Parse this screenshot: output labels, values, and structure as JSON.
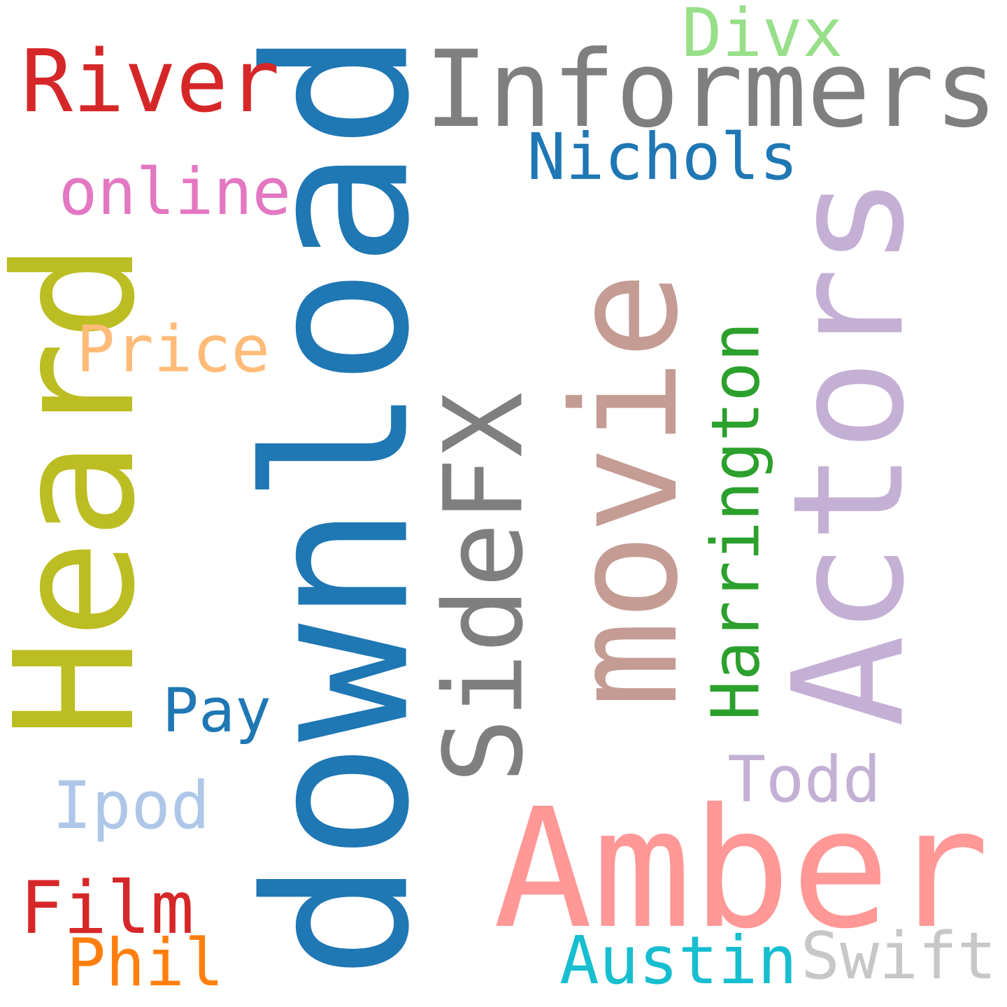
{
  "words": [
    {
      "text": "download",
      "color": "#1f77b4",
      "rotated": true
    },
    {
      "text": "movie",
      "color": "#c49c94",
      "rotated": true
    },
    {
      "text": "Actors",
      "color": "#c5b0d5",
      "rotated": true
    },
    {
      "text": "Heard",
      "color": "#bcbd22",
      "rotated": true
    },
    {
      "text": "Amber",
      "color": "#ff9896",
      "rotated": false
    },
    {
      "text": "Informers",
      "color": "#7f7f7f",
      "rotated": false
    },
    {
      "text": "SideFX",
      "color": "#7f7f7f",
      "rotated": true
    },
    {
      "text": "River",
      "color": "#d62728",
      "rotated": false
    },
    {
      "text": "Harrington",
      "color": "#2ca02c",
      "rotated": true
    },
    {
      "text": "Nichols",
      "color": "#1f77b4",
      "rotated": false
    },
    {
      "text": "Divx",
      "color": "#98df8a",
      "rotated": false
    },
    {
      "text": "online",
      "color": "#e377c2",
      "rotated": false
    },
    {
      "text": "Price",
      "color": "#ffbb78",
      "rotated": false
    },
    {
      "text": "Pay",
      "color": "#1f77b4",
      "rotated": false
    },
    {
      "text": "Ipod",
      "color": "#aec7e8",
      "rotated": false
    },
    {
      "text": "Todd",
      "color": "#c5b0d5",
      "rotated": false
    },
    {
      "text": "Film",
      "color": "#d62728",
      "rotated": false
    },
    {
      "text": "Phil",
      "color": "#ff7f0e",
      "rotated": false
    },
    {
      "text": "Austin",
      "color": "#17becf",
      "rotated": false
    },
    {
      "text": "Swift",
      "color": "#c7c7c7",
      "rotated": false
    }
  ]
}
